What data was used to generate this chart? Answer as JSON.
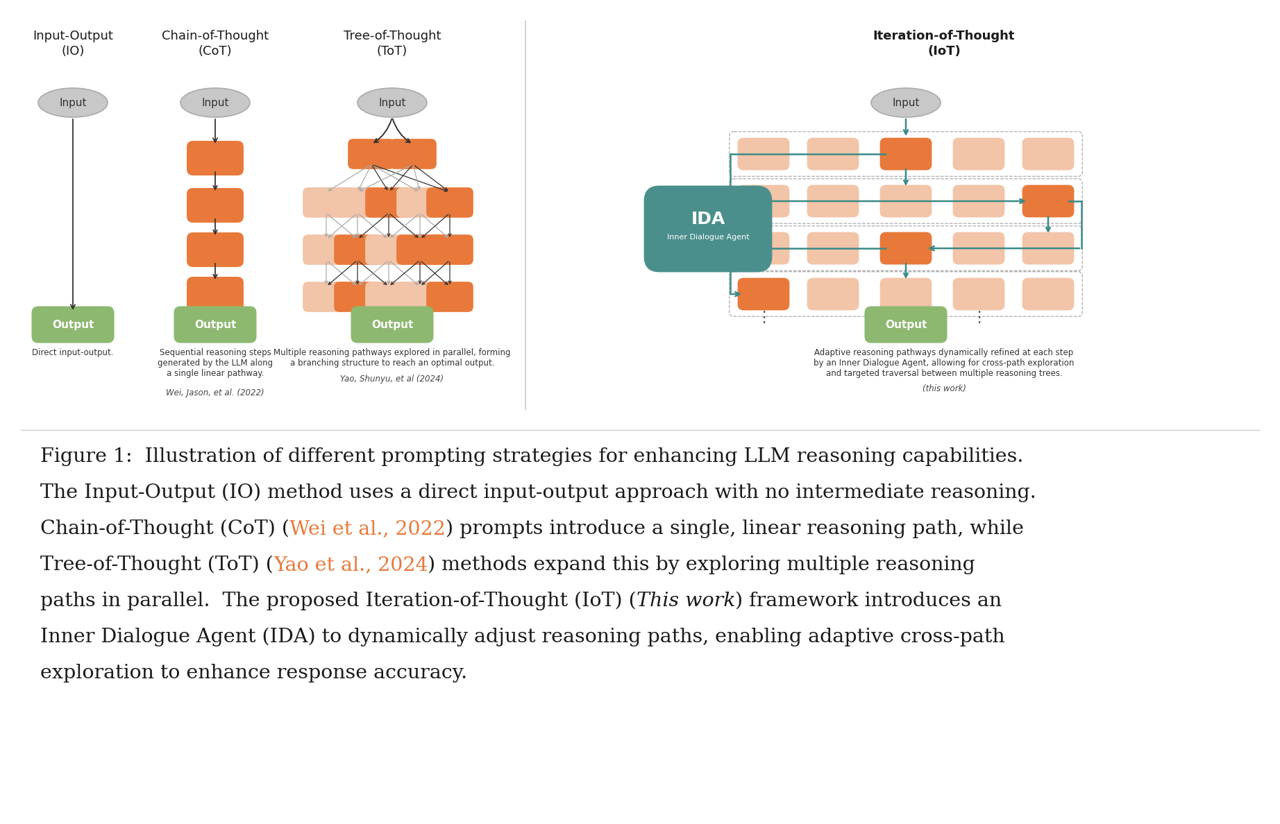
{
  "bg_color": "#ffffff",
  "fig_width": 18.44,
  "fig_height": 11.88,
  "orange_dark": "#E8793A",
  "orange_light": "#F2C4A8",
  "green_output": "#8DB870",
  "gray_input": "#C8C8C8",
  "teal_ida": "#4A8F8C",
  "teal_arrow": "#3A8A87",
  "titles": [
    [
      "Input-Output",
      "(IO)"
    ],
    [
      "Chain-of-Thought",
      "(CoT)"
    ],
    [
      "Tree-of-Thought",
      "(ToT)"
    ],
    [
      "Iteration-of-Thought",
      "(IoT)"
    ]
  ],
  "title_bold": [
    false,
    false,
    false,
    true
  ],
  "subtexts": [
    "Direct input-output.",
    "Sequential reasoning steps\ngenerated by the LLM along\na single linear pathway.",
    "Multiple reasoning pathways explored in parallel, forming\na branching structure to reach an optimal output.",
    "Adaptive reasoning pathways dynamically refined at each step\nby an Inner Dialogue Agent, allowing for cross-path exploration\nand targeted traversal between multiple reasoning trees."
  ],
  "citations": [
    "",
    "Wei, Jason, et al. (2022)",
    "Yao, Shunyu, et al (2024)",
    "(this work)"
  ],
  "caption_lines": [
    [
      [
        "Figure 1:  Illustration of different prompting strategies for enhancing LLM reasoning capabilities.",
        "normal",
        "#1a1a1a"
      ]
    ],
    [
      [
        "The Input-Output (IO) method uses a direct input-output approach with no intermediate reasoning.",
        "normal",
        "#1a1a1a"
      ]
    ],
    [
      [
        "Chain-of-Thought (CoT) (",
        "normal",
        "#1a1a1a"
      ],
      [
        "Wei et al., 2022",
        "normal",
        "#E8793A"
      ],
      [
        ") prompts introduce a single, linear reasoning path, while",
        "normal",
        "#1a1a1a"
      ]
    ],
    [
      [
        "Tree-of-Thought (ToT) (",
        "normal",
        "#1a1a1a"
      ],
      [
        "Yao et al., 2024",
        "normal",
        "#E8793A"
      ],
      [
        ") methods expand this by exploring multiple reasoning",
        "normal",
        "#1a1a1a"
      ]
    ],
    [
      [
        "paths in parallel.  The proposed Iteration-of-Thought (IoT) (",
        "normal",
        "#1a1a1a"
      ],
      [
        "This work",
        "italic",
        "#1a1a1a"
      ],
      [
        ") framework introduces an",
        "normal",
        "#1a1a1a"
      ]
    ],
    [
      [
        "Inner Dialogue Agent (IDA) to dynamically adjust reasoning paths, enabling adaptive cross-path",
        "normal",
        "#1a1a1a"
      ]
    ],
    [
      [
        "exploration to enhance response accuracy.",
        "normal",
        "#1a1a1a"
      ]
    ]
  ]
}
